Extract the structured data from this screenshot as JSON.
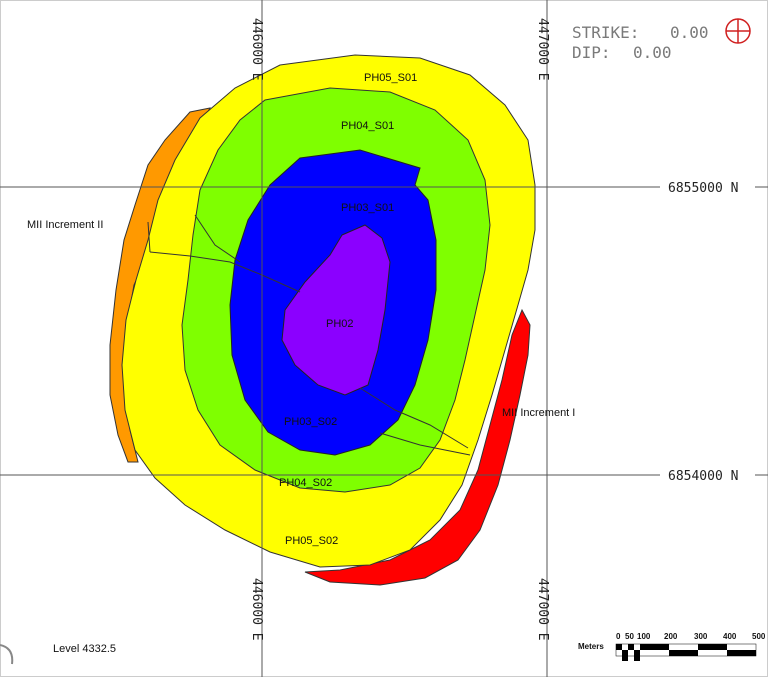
{
  "header": {
    "strike_label": "STRIKE:",
    "strike_value": "0.00",
    "dip_label": "DIP:",
    "dip_value": "0.00",
    "orientation_icon": "crosshair-circle-icon",
    "orientation_icon_color": "#d02020"
  },
  "grid": {
    "easting_lines": [
      "446000 E",
      "447000 E"
    ],
    "northing_lines": [
      "6855000 N",
      "6854000 N"
    ]
  },
  "zones": [
    {
      "label": "PH05_S01",
      "color": "#ffff00"
    },
    {
      "label": "PH04_S01",
      "color": "#7fff00"
    },
    {
      "label": "PH03_S01",
      "color": "#0000ff"
    },
    {
      "label": "PH02",
      "color": "#8b00ff"
    },
    {
      "label": "PH03_S02",
      "color": "#0000ff"
    },
    {
      "label": "PH04_S02",
      "color": "#7fff00"
    },
    {
      "label": "PH05_S02",
      "color": "#ffff00"
    },
    {
      "label": "MII Increment II",
      "color": "#ff9900"
    },
    {
      "label": "MII Increment I",
      "color": "#ff0000"
    }
  ],
  "footer": {
    "level_label": "Level 4332.5",
    "scale_unit": "Meters",
    "scale_ticks": [
      "0",
      "50",
      "100",
      "200",
      "300",
      "400",
      "500"
    ]
  }
}
